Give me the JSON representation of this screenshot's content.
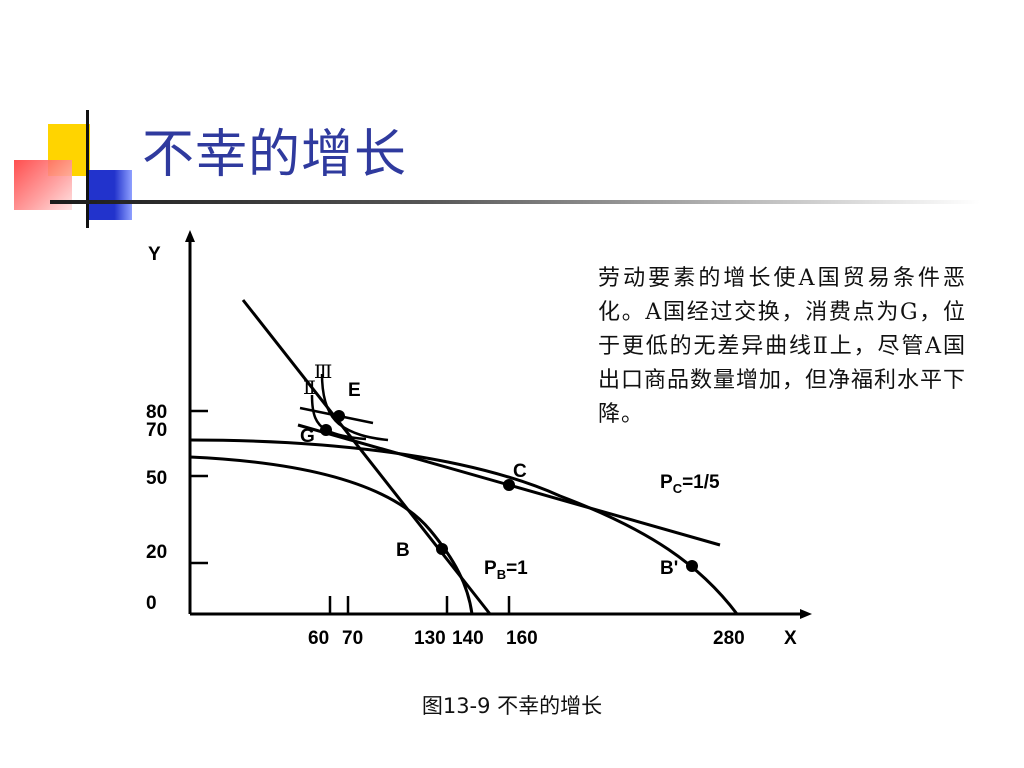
{
  "title": "不幸的增长",
  "description": "劳动要素的增长使A国贸易条件恶化。A国经过交换，消费点为G，位于更低的无差异曲线Ⅱ上，尽管A国出口商品数量增加，但净福利水平下降。",
  "caption": "图13-9 不幸的增长",
  "colors": {
    "title": "#2f3a9e",
    "deco_yellow": "#ffd400",
    "deco_blue": "#2233cc",
    "deco_red": "#ff4d4d"
  },
  "diagram": {
    "axis_y": "Y",
    "axis_x": "X",
    "y_ticks": [
      "80",
      "70",
      "50",
      "20",
      "0"
    ],
    "x_ticks": [
      "60",
      "70",
      "130",
      "140",
      "160",
      "280"
    ],
    "points": [
      "E",
      "G",
      "C",
      "B",
      "B'"
    ],
    "curve_labels": [
      "Ⅲ",
      "Ⅱ"
    ],
    "price_c": {
      "main": "P",
      "sub": "C",
      "rest": "=1/5"
    },
    "price_b": {
      "main": "P",
      "sub": "B",
      "rest": "=1"
    }
  }
}
